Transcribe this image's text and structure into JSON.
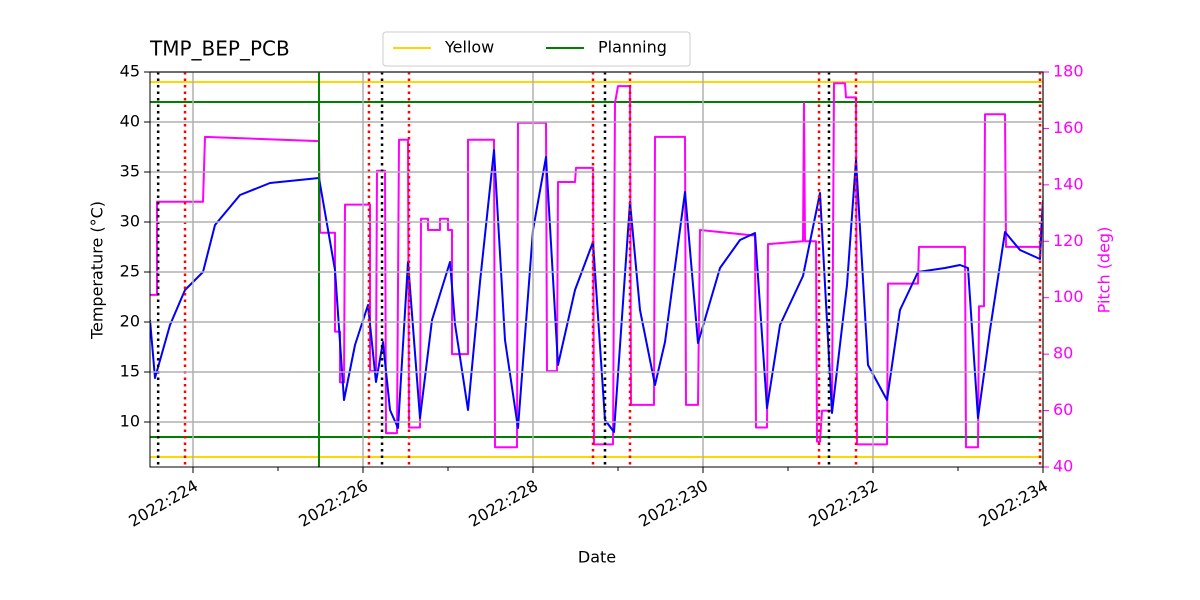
{
  "chart_data": {
    "type": "line",
    "title": "TMP_BEP_PCB",
    "xlabel": "Date",
    "ylabel": "Temperature (°C)",
    "y2label": "Pitch (deg)",
    "y2color": "magenta",
    "grid": true,
    "legend": "top",
    "xlim": [
      223.494,
      234.0
    ],
    "xticks": [
      {
        "value": 224,
        "label": "2022:224"
      },
      {
        "value": 226,
        "label": "2022:226"
      },
      {
        "value": 228,
        "label": "2022:228"
      },
      {
        "value": 230,
        "label": "2022:230"
      },
      {
        "value": 232,
        "label": "2022:232"
      },
      {
        "value": 234,
        "label": "2022:234"
      }
    ],
    "xminor": [
      225,
      227,
      229,
      231,
      233
    ],
    "ylim": [
      5.5,
      45
    ],
    "yticks": [
      10,
      15,
      20,
      25,
      30,
      35,
      40,
      45
    ],
    "y2lim": [
      40,
      180
    ],
    "y2ticks": [
      40,
      60,
      80,
      100,
      120,
      140,
      160,
      180
    ],
    "limits": [
      {
        "name": "Yellow",
        "color": "gold",
        "values": [
          6.5,
          44
        ]
      },
      {
        "name": "Planning",
        "color": "green",
        "values": [
          8.5,
          42
        ]
      }
    ],
    "vlines": [
      {
        "color": "green",
        "style": "solid",
        "x": [
          225.482
        ]
      },
      {
        "color": "black",
        "style": "dotted",
        "x": [
          223.59,
          226.224,
          228.847,
          231.482
        ]
      },
      {
        "color": "red",
        "style": "dotted",
        "x": [
          223.906,
          226.07,
          226.541,
          228.706,
          229.141,
          231.365,
          231.8,
          233.965
        ]
      }
    ],
    "series": [
      {
        "color": "blue",
        "x": [
          223.494,
          223.553,
          223.729,
          223.906,
          224.118,
          224.259,
          224.553,
          224.906,
          225.482,
          225.671,
          225.776,
          225.906,
          226.059,
          226.153,
          226.235,
          226.318,
          226.412,
          226.529,
          226.671,
          226.812,
          227.024,
          227.082,
          227.235,
          227.376,
          227.541,
          227.671,
          227.824,
          228.0,
          228.153,
          228.294,
          228.494,
          228.706,
          228.847,
          228.953,
          229.141,
          229.259,
          229.435,
          229.553,
          229.788,
          229.941,
          230.2,
          230.435,
          230.612,
          230.753,
          230.906,
          231.176,
          231.376,
          231.518,
          231.694,
          231.8,
          231.941,
          232.165,
          232.318,
          232.529,
          232.847,
          233.024,
          233.118,
          233.235,
          233.376,
          233.553,
          233.729,
          233.965,
          234.0
        ],
        "values": [
          20.2,
          14.4,
          19.7,
          23.2,
          25.0,
          29.7,
          32.7,
          33.9,
          34.4,
          25.2,
          12.2,
          17.7,
          21.7,
          14.0,
          18.0,
          11.2,
          9.4,
          26.0,
          10.4,
          20.2,
          26.0,
          19.8,
          11.2,
          24.0,
          37.2,
          18.2,
          9.4,
          29.2,
          36.5,
          15.7,
          23.2,
          28.0,
          10.2,
          9.0,
          32.0,
          21.2,
          13.7,
          18.0,
          33.0,
          17.9,
          25.4,
          28.2,
          28.9,
          11.4,
          19.7,
          24.6,
          32.9,
          10.9,
          23.7,
          36.2,
          15.7,
          12.2,
          21.2,
          25.0,
          25.4,
          25.7,
          25.4,
          10.4,
          19.2,
          29.0,
          27.2,
          26.3,
          32.2
        ]
      },
      {
        "color": "magenta",
        "axis": "y2",
        "x": [
          223.494,
          223.576,
          223.576,
          224.118,
          224.141,
          225.482,
          225.494,
          225.671,
          225.671,
          225.729,
          225.729,
          225.776,
          225.788,
          226.082,
          226.082,
          226.153,
          226.165,
          226.259,
          226.271,
          226.4,
          226.424,
          226.529,
          226.541,
          226.671,
          226.682,
          226.765,
          226.765,
          226.906,
          226.906,
          227.0,
          227.0,
          227.047,
          227.047,
          227.235,
          227.235,
          227.541,
          227.553,
          227.812,
          227.824,
          228.153,
          228.165,
          228.282,
          228.294,
          228.494,
          228.506,
          228.706,
          228.718,
          228.941,
          228.965,
          229.0,
          229.141,
          229.153,
          229.423,
          229.435,
          229.788,
          229.8,
          229.941,
          229.965,
          230.612,
          230.624,
          230.753,
          230.765,
          231.176,
          231.188,
          231.2,
          231.329,
          231.341,
          231.376,
          231.4,
          231.518,
          231.541,
          231.671,
          231.682,
          231.8,
          231.812,
          232.165,
          232.176,
          232.529,
          232.541,
          233.082,
          233.094,
          233.235,
          233.247,
          233.306,
          233.318,
          233.553,
          233.565,
          233.965,
          234.0
        ],
        "values": [
          101,
          101,
          134,
          134,
          157,
          155.5,
          123,
          123,
          88,
          88,
          70,
          70,
          133,
          133,
          74,
          74,
          145,
          145,
          52,
          52,
          156,
          156,
          54,
          54,
          128,
          128,
          124,
          124,
          128,
          128,
          124,
          124,
          80,
          80,
          156,
          156,
          47,
          47,
          162,
          162,
          74,
          74,
          141,
          141,
          146,
          146,
          48,
          48,
          169,
          175,
          175,
          62,
          62,
          157,
          157,
          62,
          62,
          124,
          122,
          54,
          54,
          119,
          120,
          169,
          120,
          120,
          49,
          49,
          60,
          60,
          176,
          176,
          171,
          171,
          48,
          48,
          105,
          105,
          118,
          118,
          47,
          47,
          97,
          97,
          165,
          165,
          118,
          118,
          134
        ]
      }
    ]
  }
}
